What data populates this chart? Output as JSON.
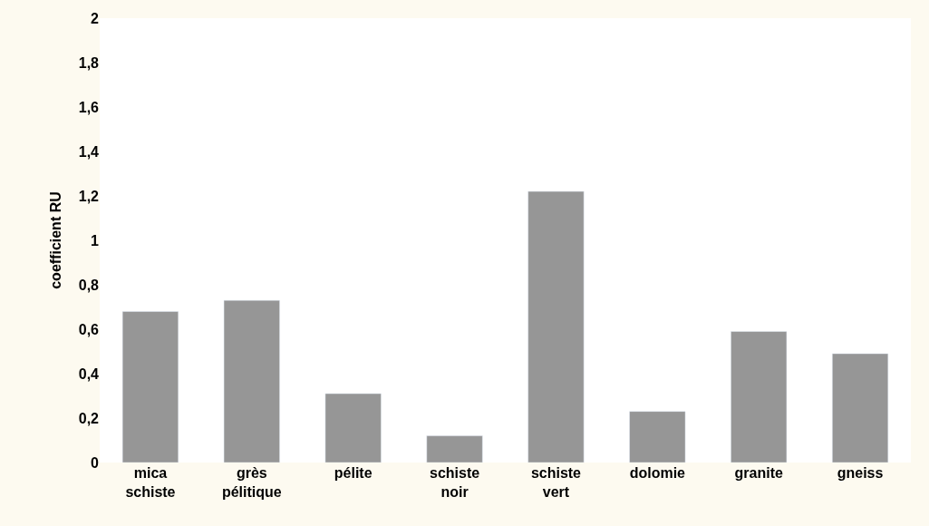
{
  "chart_data": {
    "type": "bar",
    "ylabel": "coefficient RU",
    "categories": [
      "mica schiste",
      "grès pélitique",
      "pélite",
      "schiste noir",
      "schiste vert",
      "dolomie",
      "granite",
      "gneiss"
    ],
    "values": [
      0.68,
      0.73,
      0.31,
      0.12,
      1.22,
      0.23,
      0.59,
      0.49
    ],
    "color": "#969696",
    "ylim": [
      0,
      2
    ],
    "yticks": [
      {
        "value": 0,
        "label": "0"
      },
      {
        "value": 0.2,
        "label": "0,2"
      },
      {
        "value": 0.4,
        "label": "0,4"
      },
      {
        "value": 0.6,
        "label": "0,6"
      },
      {
        "value": 0.8,
        "label": "0,8"
      },
      {
        "value": 1,
        "label": "1"
      },
      {
        "value": 1.2,
        "label": "1,2"
      },
      {
        "value": 1.4,
        "label": "1,4"
      },
      {
        "value": 1.6,
        "label": "1,6"
      },
      {
        "value": 1.8,
        "label": "1,8"
      },
      {
        "value": 2,
        "label": "2"
      }
    ]
  }
}
